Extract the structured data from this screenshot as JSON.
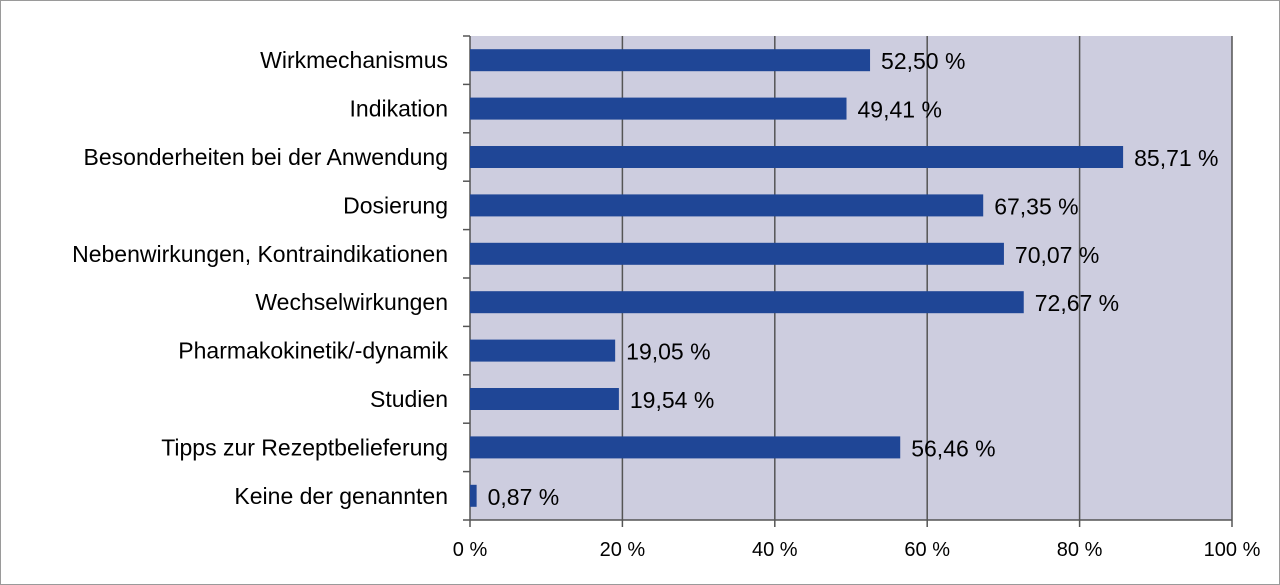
{
  "chart_data": {
    "type": "bar",
    "orientation": "horizontal",
    "categories": [
      "Wirkmechanismus",
      "Indikation",
      "Besonderheiten bei der Anwendung",
      "Dosierung",
      "Nebenwirkungen, Kontraindikationen",
      "Wechselwirkungen",
      "Pharmakokinetik/-dynamik",
      "Studien",
      "Tipps  zur Rezeptbelieferung",
      "Keine der genannten"
    ],
    "values": [
      52.5,
      49.41,
      85.71,
      67.35,
      70.07,
      72.67,
      19.05,
      19.54,
      56.46,
      0.87
    ],
    "value_labels": [
      "52,50 %",
      "49,41 %",
      "85,71 %",
      "67,35 %",
      "70,07 %",
      "72,67 %",
      "19,05 %",
      "19,54 %",
      "56,46 %",
      "0,87 %"
    ],
    "xlim": [
      0,
      100
    ],
    "x_ticks": [
      0,
      20,
      40,
      60,
      80,
      100
    ],
    "x_tick_labels": [
      "0 %",
      "20 %",
      "40 %",
      "60 %",
      "80 %",
      "100 %"
    ],
    "grid": true,
    "title": "",
    "xlabel": "",
    "ylabel": "",
    "colors": {
      "bar": "#1f4696",
      "plot_background": "#cdcddf",
      "gridline": "#555555"
    }
  }
}
